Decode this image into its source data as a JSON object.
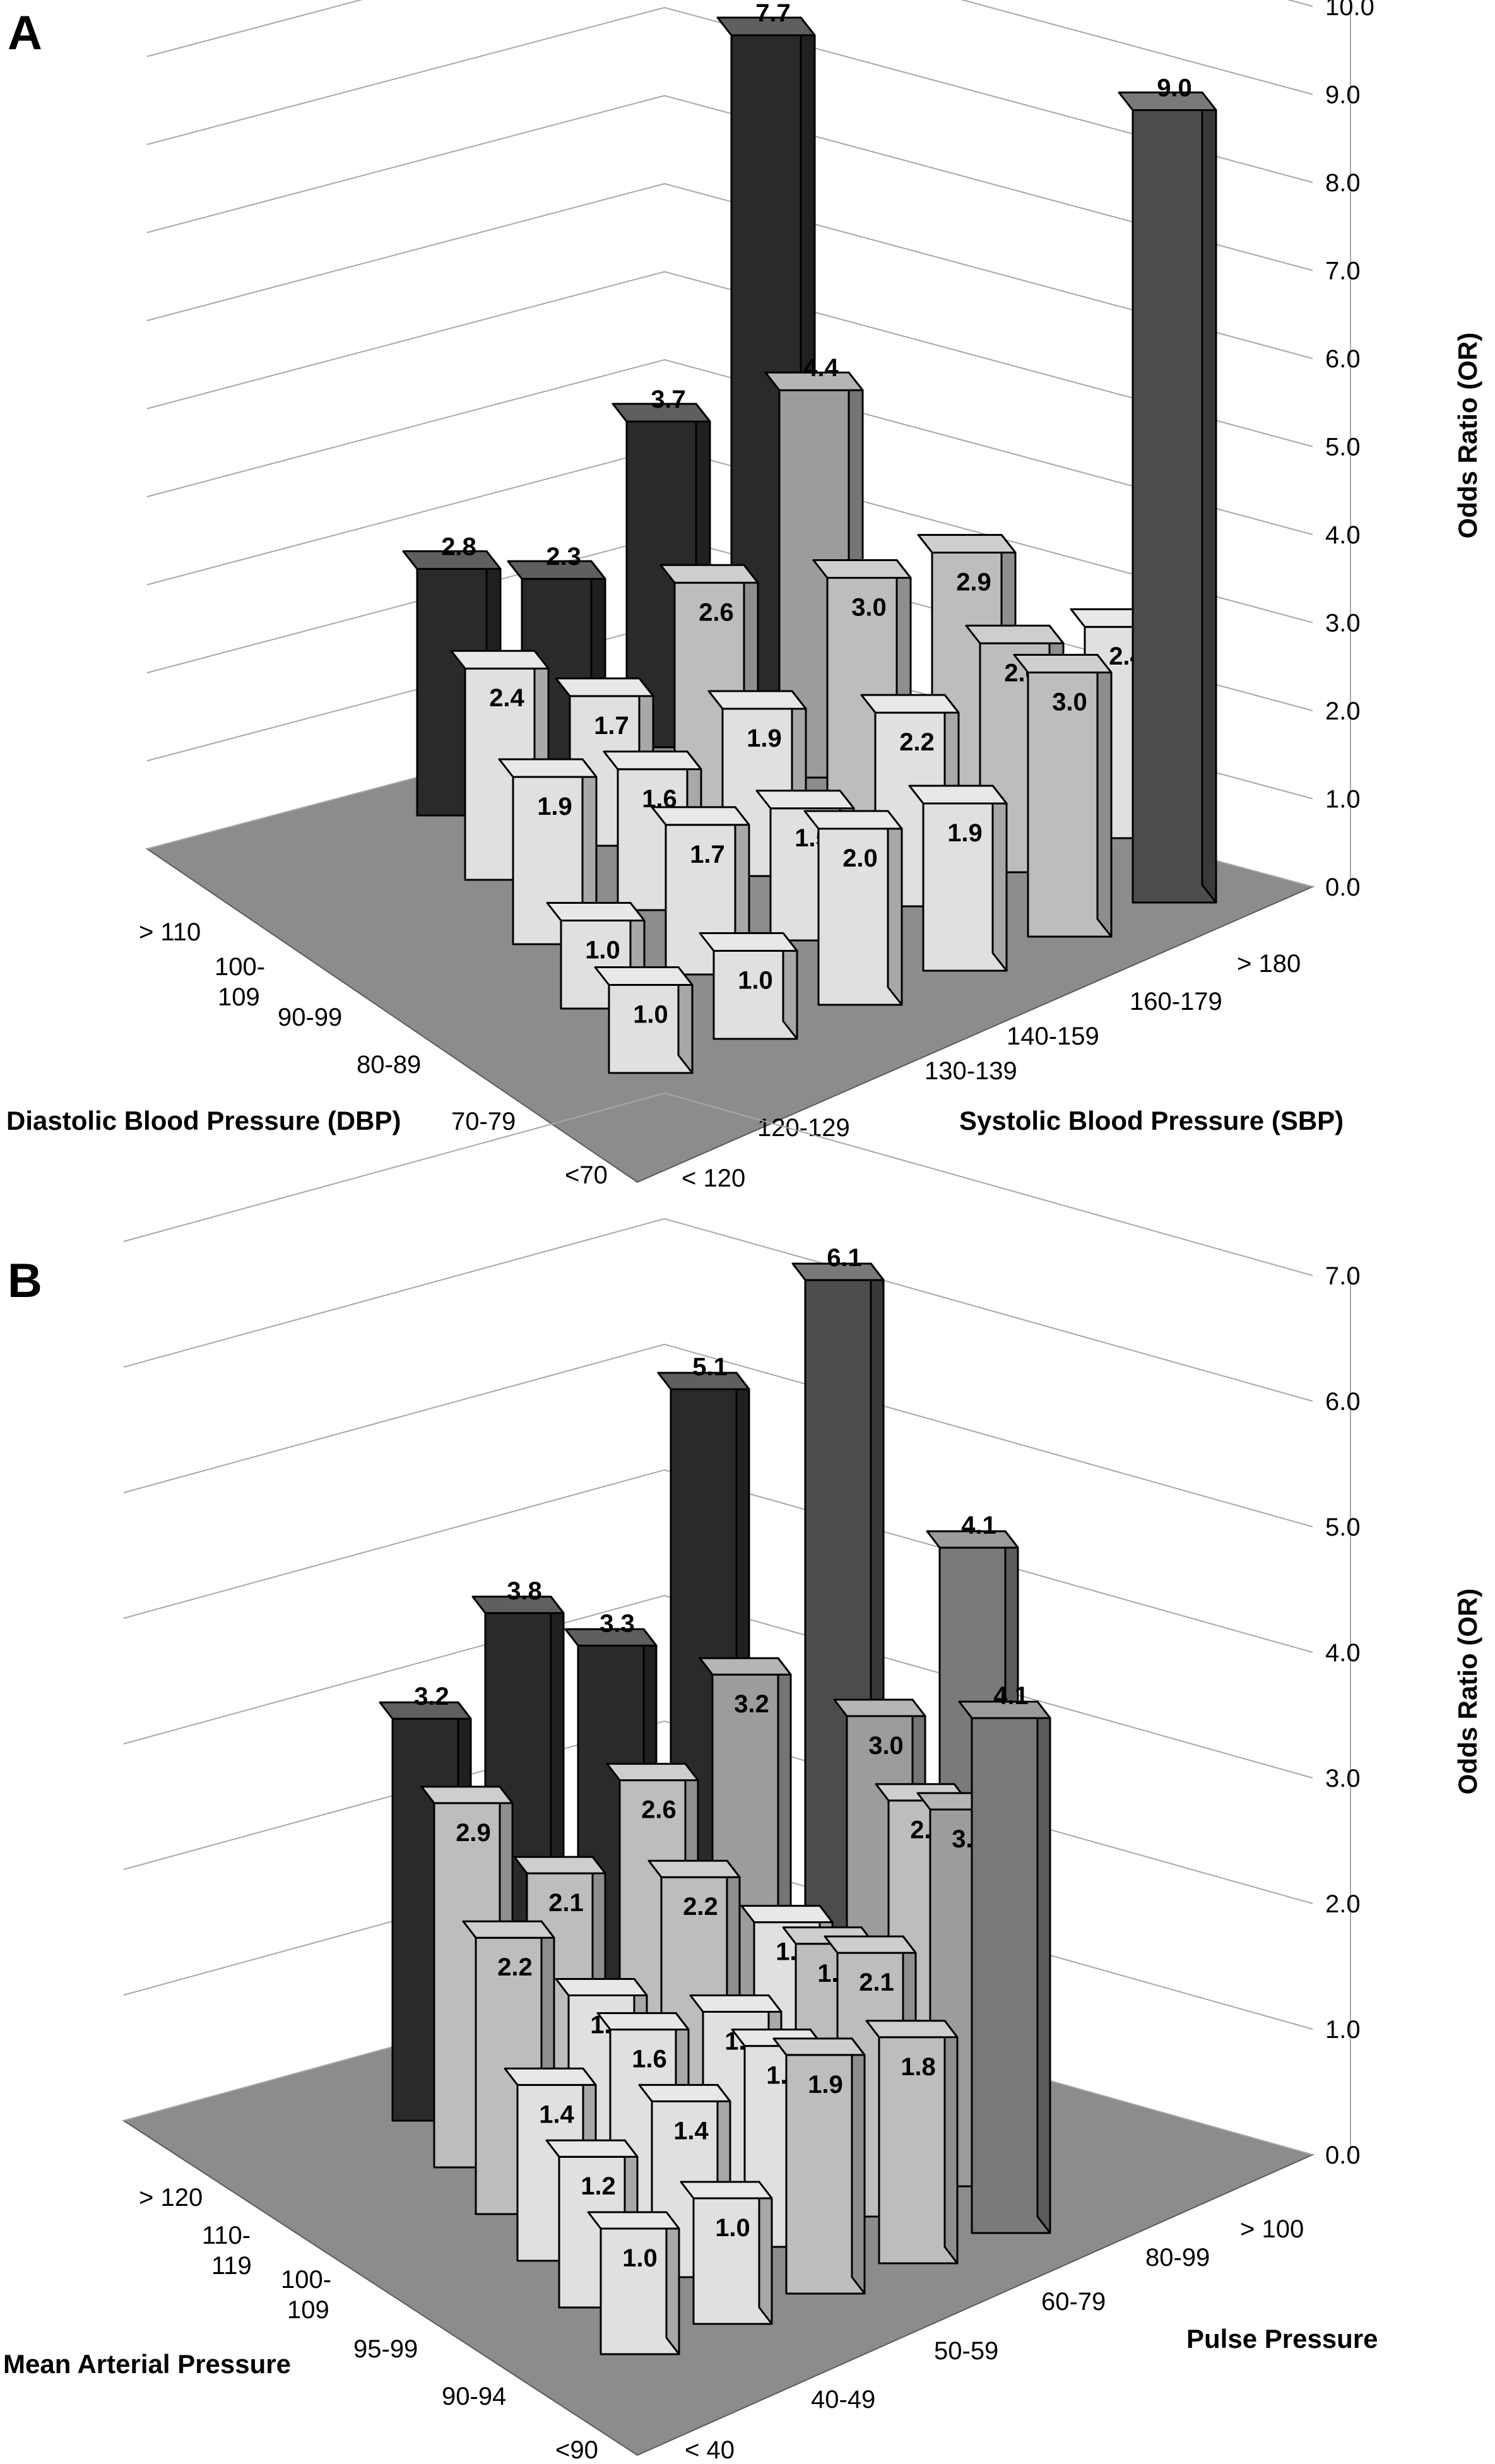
{
  "colors": {
    "floor": "#8c8c8c",
    "grid": "#a8a8a8",
    "top_row": "#2a2a2a",
    "shade_scale": [
      "#ffffff",
      "#e0e0e0",
      "#bdbdbd",
      "#9c9c9c",
      "#7a7a7a",
      "#4c4c4c",
      "#262626"
    ]
  },
  "chart_data": [
    {
      "panel": "A",
      "type": "bar3d",
      "zlabel": "Odds Ratio (OR)",
      "xlabel": "Systolic Blood Pressure (SBP)",
      "ylabel": "Diastolic Blood Pressure (DBP)",
      "x_categories": [
        "< 120",
        "120-129",
        "130-139",
        "140-159",
        "160-179",
        "> 180"
      ],
      "y_categories": [
        "<70",
        "70-79",
        "80-89",
        "90-99",
        "100-\n109",
        "> 110"
      ],
      "z_ticks": [
        "0.0",
        "1.0",
        "2.0",
        "3.0",
        "4.0",
        "5.0",
        "6.0",
        "7.0",
        "8.0",
        "9.0",
        "10.0"
      ],
      "zlim": [
        0,
        10
      ],
      "series": [
        {
          "values": [
            1.0,
            1.0,
            2.0,
            1.9,
            3.0,
            9.0
          ]
        },
        {
          "values": [
            1.0,
            1.7,
            1.5,
            2.2,
            2.6,
            2.4
          ]
        },
        {
          "values": [
            1.9,
            1.6,
            1.9,
            3.0,
            2.9
          ]
        },
        {
          "values": [
            2.4,
            1.7,
            2.6,
            4.4
          ]
        },
        {
          "values": [
            2.8,
            2.3,
            3.7,
            7.7
          ]
        }
      ],
      "value_labels": [
        [
          "1.0",
          "1.0",
          "2.0",
          "1.9",
          "3.0",
          "9.0"
        ],
        [
          "1.0",
          "1.7",
          "1.5",
          "2.2",
          "2.6",
          "2.4"
        ],
        [
          "1.9",
          "1.6",
          "1.9",
          "3.0",
          "2.9"
        ],
        [
          "2.4",
          "1.7",
          "2.6",
          "4.4"
        ],
        [
          "2.8",
          "2.3",
          "3.7",
          "7.7"
        ]
      ]
    },
    {
      "panel": "B",
      "type": "bar3d",
      "zlabel": "Odds Ratio (OR)",
      "xlabel": "Pulse Pressure",
      "ylabel": "Mean Arterial Pressure",
      "x_categories": [
        "< 40",
        "40-49",
        "50-59",
        "60-79",
        "80-99",
        "> 100"
      ],
      "y_categories": [
        "<90",
        "90-94",
        "95-99",
        "100-\n109",
        "110-\n119",
        "> 120"
      ],
      "z_ticks": [
        "0.0",
        "1.0",
        "2.0",
        "3.0",
        "4.0",
        "5.0",
        "6.0",
        "7.0"
      ],
      "zlim": [
        0,
        7
      ],
      "series": [
        {
          "values": [
            1.0,
            1.0,
            1.9,
            1.8,
            4.1
          ]
        },
        {
          "values": [
            1.2,
            1.4,
            1.6,
            2.1,
            3.0
          ]
        },
        {
          "values": [
            1.4,
            1.6,
            1.5,
            1.8,
            2.7
          ]
        },
        {
          "values": [
            2.2,
            1.5,
            2.2,
            1.6,
            3.0,
            4.1
          ]
        },
        {
          "values": [
            2.9,
            2.1,
            2.6,
            3.2,
            6.1
          ]
        },
        {
          "values": [
            3.2,
            3.8,
            3.3,
            5.1
          ]
        }
      ],
      "value_labels": [
        [
          "1.0",
          "1.0",
          "1.9",
          "1.8",
          "4.1"
        ],
        [
          "1.2",
          "1.4",
          "1.6",
          "2.1",
          "3.0"
        ],
        [
          "1.4",
          "1.6",
          "1.5",
          "1.8",
          "2.7"
        ],
        [
          "2.2",
          "1.5",
          "2.2",
          "1.6",
          "3.0",
          "4.1"
        ],
        [
          "2.9",
          "2.1",
          "2.6",
          "3.2",
          "6.1"
        ],
        [
          "3.2",
          "3.8",
          "3.3",
          "5.1"
        ]
      ]
    }
  ]
}
